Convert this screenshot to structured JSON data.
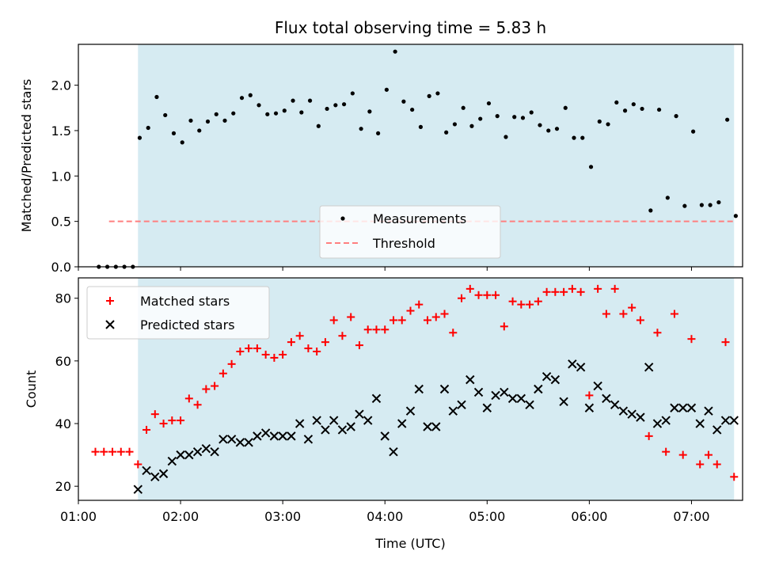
{
  "chart_data": [
    {
      "type": "scatter",
      "title": "Flux total observing time = 5.83 h",
      "xlabel": "",
      "ylabel": "Matched/Predicted stars",
      "xlim": [
        "01:00",
        "07:30"
      ],
      "ylim": [
        0,
        2.45
      ],
      "yticks": [
        0.0,
        0.5,
        1.0,
        1.5,
        2.0
      ],
      "ytick_labels": [
        "0.0",
        "0.5",
        "1.0",
        "1.5",
        "2.0"
      ],
      "shaded_span": [
        "01:35",
        "07:25"
      ],
      "legend": {
        "placement": "lower center",
        "entries": [
          "Measurements",
          "Threshold"
        ]
      },
      "threshold": {
        "name": "Threshold",
        "y": 0.5,
        "x_range": [
          "01:18",
          "07:25"
        ],
        "color": "#ff7f7f"
      },
      "series": [
        {
          "name": "Measurements",
          "color": "#000000",
          "x": [
            "01:12",
            "01:17",
            "01:22",
            "01:27",
            "01:32",
            "01:36",
            "01:41",
            "01:46",
            "01:51",
            "01:56",
            "02:01",
            "02:06",
            "02:11",
            "02:16",
            "02:21",
            "02:26",
            "02:31",
            "02:36",
            "02:41",
            "02:46",
            "02:51",
            "02:56",
            "03:01",
            "03:06",
            "03:11",
            "03:16",
            "03:21",
            "03:26",
            "03:31",
            "03:36",
            "03:41",
            "03:46",
            "03:51",
            "03:56",
            "04:01",
            "04:06",
            "04:11",
            "04:16",
            "04:21",
            "04:26",
            "04:31",
            "04:36",
            "04:41",
            "04:46",
            "04:51",
            "04:56",
            "05:01",
            "05:06",
            "05:11",
            "05:16",
            "05:21",
            "05:26",
            "05:31",
            "05:36",
            "05:41",
            "05:46",
            "05:51",
            "05:56",
            "06:01",
            "06:06",
            "06:11",
            "06:16",
            "06:21",
            "06:26",
            "06:31",
            "06:36",
            "06:41",
            "06:46",
            "06:51",
            "06:56",
            "07:01",
            "07:06",
            "07:11",
            "07:16",
            "07:21",
            "07:26"
          ],
          "y": [
            0,
            0,
            0,
            0,
            0,
            1.42,
            1.53,
            1.87,
            1.67,
            1.47,
            1.37,
            1.61,
            1.5,
            1.6,
            1.68,
            1.61,
            1.69,
            1.86,
            1.89,
            1.78,
            1.68,
            1.69,
            1.72,
            1.83,
            1.7,
            1.83,
            1.55,
            1.74,
            1.78,
            1.79,
            1.91,
            1.52,
            1.71,
            1.47,
            1.95,
            2.37,
            1.82,
            1.73,
            1.54,
            1.88,
            1.91,
            1.48,
            1.57,
            1.75,
            1.55,
            1.63,
            1.8,
            1.66,
            1.43,
            1.65,
            1.64,
            1.7,
            1.56,
            1.5,
            1.52,
            1.75,
            1.42,
            1.42,
            1.1,
            1.6,
            1.57,
            1.81,
            1.72,
            1.79,
            1.74,
            0.62,
            1.73,
            0.76,
            1.66,
            0.67,
            1.49,
            0.68,
            0.68,
            0.71,
            1.62,
            0.56
          ]
        }
      ]
    },
    {
      "type": "scatter",
      "title": "",
      "xlabel": "Time (UTC)",
      "ylabel": "Count",
      "xlim": [
        "01:00",
        "07:30"
      ],
      "ylim": [
        15.5,
        86.5
      ],
      "yticks": [
        20,
        40,
        60,
        80
      ],
      "ytick_labels": [
        "20",
        "40",
        "60",
        "80"
      ],
      "xticks": [
        "01:00",
        "02:00",
        "03:00",
        "04:00",
        "05:00",
        "06:00",
        "07:00"
      ],
      "shaded_span": [
        "01:35",
        "07:25"
      ],
      "legend": {
        "placement": "upper left",
        "entries": [
          "Matched stars",
          "Predicted stars"
        ]
      },
      "series": [
        {
          "name": "Matched stars",
          "marker": "+",
          "color": "#ff0000",
          "x": [
            "01:10",
            "01:15",
            "01:20",
            "01:25",
            "01:30",
            "01:35",
            "01:40",
            "01:45",
            "01:50",
            "01:55",
            "02:00",
            "02:05",
            "02:10",
            "02:15",
            "02:20",
            "02:25",
            "02:30",
            "02:35",
            "02:40",
            "02:45",
            "02:50",
            "02:55",
            "03:00",
            "03:05",
            "03:10",
            "03:15",
            "03:20",
            "03:25",
            "03:30",
            "03:35",
            "03:40",
            "03:45",
            "03:50",
            "03:55",
            "04:00",
            "04:05",
            "04:10",
            "04:15",
            "04:20",
            "04:25",
            "04:30",
            "04:35",
            "04:40",
            "04:45",
            "04:50",
            "04:55",
            "05:00",
            "05:05",
            "05:10",
            "05:15",
            "05:20",
            "05:25",
            "05:30",
            "05:35",
            "05:40",
            "05:45",
            "05:50",
            "05:55",
            "06:00",
            "06:05",
            "06:10",
            "06:15",
            "06:20",
            "06:25",
            "06:30",
            "06:35",
            "06:40",
            "06:45",
            "06:50",
            "06:55",
            "07:00",
            "07:05",
            "07:10",
            "07:15",
            "07:20",
            "07:25"
          ],
          "y": [
            31,
            31,
            31,
            31,
            31,
            27,
            38,
            43,
            40,
            41,
            41,
            48,
            46,
            51,
            52,
            56,
            59,
            63,
            64,
            64,
            62,
            61,
            62,
            66,
            68,
            64,
            63,
            66,
            73,
            68,
            74,
            65,
            70,
            70,
            70,
            73,
            73,
            76,
            78,
            73,
            74,
            75,
            69,
            80,
            83,
            81,
            81,
            81,
            71,
            79,
            78,
            78,
            79,
            82,
            82,
            82,
            83,
            82,
            49,
            83,
            75,
            83,
            75,
            77,
            73,
            36,
            69,
            31,
            75,
            30,
            67,
            27,
            30,
            27,
            66,
            23
          ]
        },
        {
          "name": "Predicted stars",
          "marker": "x",
          "color": "#000000",
          "x": [
            "01:35",
            "01:40",
            "01:45",
            "01:50",
            "01:55",
            "02:00",
            "02:05",
            "02:10",
            "02:15",
            "02:20",
            "02:25",
            "02:30",
            "02:35",
            "02:40",
            "02:45",
            "02:50",
            "02:55",
            "03:00",
            "03:05",
            "03:10",
            "03:15",
            "03:20",
            "03:25",
            "03:30",
            "03:35",
            "03:40",
            "03:45",
            "03:50",
            "03:55",
            "04:00",
            "04:05",
            "04:10",
            "04:15",
            "04:20",
            "04:25",
            "04:30",
            "04:35",
            "04:40",
            "04:45",
            "04:50",
            "04:55",
            "05:00",
            "05:05",
            "05:10",
            "05:15",
            "05:20",
            "05:25",
            "05:30",
            "05:35",
            "05:40",
            "05:45",
            "05:50",
            "05:55",
            "06:00",
            "06:05",
            "06:10",
            "06:15",
            "06:20",
            "06:25",
            "06:30",
            "06:35",
            "06:40",
            "06:45",
            "06:50",
            "06:55",
            "07:00",
            "07:05",
            "07:10",
            "07:15",
            "07:20",
            "07:25"
          ],
          "y": [
            19,
            25,
            23,
            24,
            28,
            30,
            30,
            31,
            32,
            31,
            35,
            35,
            34,
            34,
            36,
            37,
            36,
            36,
            36,
            40,
            35,
            41,
            38,
            41,
            38,
            39,
            43,
            41,
            48,
            36,
            31,
            40,
            44,
            51,
            39,
            39,
            51,
            44,
            46,
            54,
            50,
            45,
            49,
            50,
            48,
            48,
            46,
            51,
            55,
            54,
            47,
            59,
            58,
            45,
            52,
            48,
            46,
            44,
            43,
            42,
            58,
            40,
            41,
            45,
            45,
            45,
            40,
            44,
            38,
            41,
            41
          ]
        }
      ]
    }
  ]
}
